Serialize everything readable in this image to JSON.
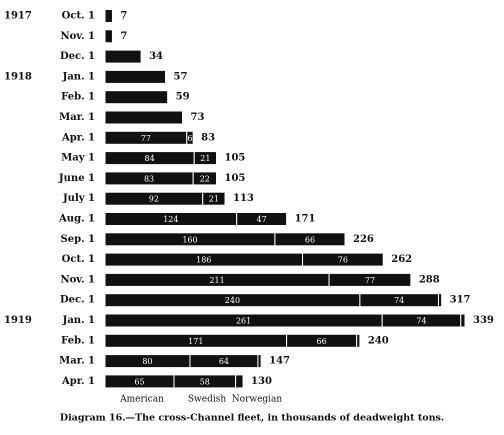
{
  "chart_data": {
    "type": "stacked-bar-horizontal",
    "caption": "Diagram 16.—The cross-Channel fleet, in thousands of deadweight tons.",
    "years": [
      "1917",
      null,
      null,
      "1918",
      null,
      null,
      null,
      null,
      null,
      null,
      null,
      null,
      null,
      null,
      null,
      "1919",
      null,
      null,
      null
    ],
    "categories": [
      "Oct. 1",
      "Nov. 1",
      "Dec. 1",
      "Jan. 1",
      "Feb. 1",
      "Mar. 1",
      "Apr. 1",
      "May 1",
      "June 1",
      "July 1",
      "Aug. 1",
      "Sep. 1",
      "Oct. 1",
      "Nov. 1",
      "Dec. 1",
      "Jan. 1",
      "Feb. 1",
      "Mar. 1",
      "Apr. 1"
    ],
    "series": [
      {
        "name": "American",
        "color": "#111111",
        "values": [
          7,
          7,
          34,
          57,
          59,
          73,
          77,
          84,
          83,
          92,
          124,
          160,
          186,
          211,
          240,
          261,
          171,
          80,
          65
        ]
      },
      {
        "name": "Swedish",
        "color": "#111111",
        "values": [
          null,
          null,
          null,
          null,
          null,
          null,
          6,
          21,
          22,
          21,
          47,
          66,
          76,
          77,
          74,
          74,
          66,
          64,
          58
        ]
      },
      {
        "name": "Norwegian",
        "color": "#111111",
        "values": [
          null,
          null,
          null,
          null,
          null,
          null,
          null,
          null,
          null,
          null,
          null,
          null,
          null,
          null,
          3,
          4,
          3,
          3,
          7
        ]
      }
    ],
    "totals": [
      7,
      7,
      34,
      57,
      59,
      73,
      83,
      105,
      105,
      113,
      171,
      226,
      262,
      288,
      317,
      339,
      240,
      147,
      130
    ],
    "inner_labels": [
      false,
      false,
      false,
      false,
      false,
      false,
      true,
      true,
      true,
      true,
      true,
      true,
      true,
      true,
      true,
      true,
      true,
      true,
      true
    ]
  }
}
